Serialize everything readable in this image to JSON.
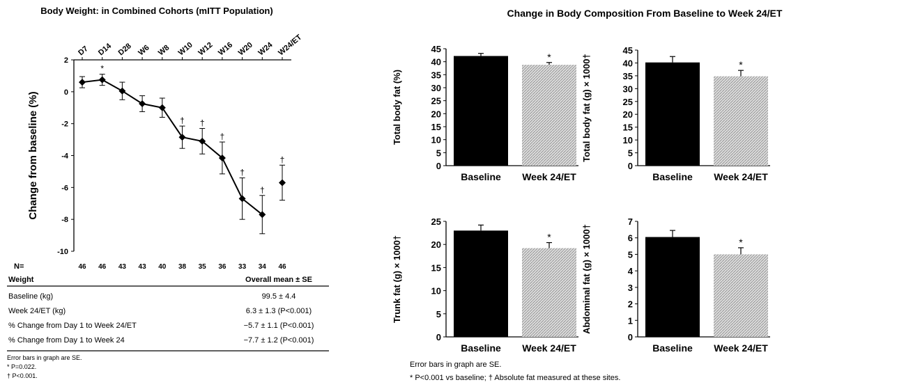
{
  "chart_data": [
    {
      "type": "line",
      "title": "Body Weight: in Combined Cohorts (mITT Population)",
      "ylabel": "Change from baseline (%)",
      "ylim": [
        -10,
        2
      ],
      "yticks": [
        2,
        0,
        -2,
        -4,
        -6,
        -8,
        -10
      ],
      "categories": [
        "D7",
        "D14",
        "D28",
        "W6",
        "W8",
        "W10",
        "W12",
        "W16",
        "W20",
        "W24",
        "W24/ET"
      ],
      "values": [
        0.6,
        0.75,
        0.05,
        -0.75,
        -1.0,
        -2.85,
        -3.1,
        -4.15,
        -6.7,
        -7.7,
        -5.7
      ],
      "errors": [
        0.35,
        0.35,
        0.55,
        0.5,
        0.6,
        0.7,
        0.8,
        1.0,
        1.3,
        1.2,
        1.1
      ],
      "markers": [
        "",
        "*",
        "",
        "",
        "",
        "†",
        "†",
        "†",
        "†",
        "†",
        "†"
      ],
      "n_label": "N=",
      "n_values": [
        "46",
        "46",
        "43",
        "43",
        "40",
        "38",
        "35",
        "36",
        "33",
        "34",
        "46"
      ],
      "table": {
        "headers": [
          "Weight",
          "Overall mean ± SE"
        ],
        "rows": [
          [
            "Baseline (kg)",
            "99.5 ± 4.4"
          ],
          [
            "Week 24/ET (kg)",
            "6.3 ± 1.3 (P<0.001)"
          ],
          [
            "% Change from Day 1 to Week 24/ET",
            "−5.7 ± 1.1 (P<0.001)"
          ],
          [
            "% Change from Day 1 to Week 24",
            "−7.7 ± 1.2 (P<0.001)"
          ]
        ]
      },
      "footnotes": [
        "Error bars in graph are SE.",
        "* P=0.022.",
        "† P<0.001."
      ]
    },
    {
      "type": "bar",
      "ylabel": "Total body fat (%)",
      "categories": [
        "Baseline",
        "Week 24/ET"
      ],
      "values": [
        42.2,
        38.8
      ],
      "errors": [
        1.0,
        0.9
      ],
      "ylim": [
        0,
        45
      ],
      "ystep": 5,
      "markers": [
        "",
        "*"
      ]
    },
    {
      "type": "bar",
      "ylabel": "Total body fat (g) × 1000†",
      "categories": [
        "Baseline",
        "Week 24/ET"
      ],
      "values": [
        40.2,
        34.8
      ],
      "errors": [
        2.3,
        2.3
      ],
      "ylim": [
        0,
        45
      ],
      "ystep": 5,
      "markers": [
        "",
        "*"
      ]
    },
    {
      "type": "bar",
      "ylabel": "Trunk fat (g) × 1000†",
      "categories": [
        "Baseline",
        "Week 24/ET"
      ],
      "values": [
        23.0,
        19.2
      ],
      "errors": [
        1.2,
        1.2
      ],
      "ylim": [
        0,
        25
      ],
      "ystep": 5,
      "markers": [
        "",
        "*"
      ]
    },
    {
      "type": "bar",
      "ylabel": "Abdominal fat (g) × 1000†",
      "categories": [
        "Baseline",
        "Week 24/ET"
      ],
      "values": [
        6.05,
        5.0
      ],
      "errors": [
        0.4,
        0.4
      ],
      "ylim": [
        0,
        7
      ],
      "ystep": 1,
      "markers": [
        "",
        "*"
      ]
    }
  ],
  "right_title": "Change in Body Composition From Baseline to Week 24/ET",
  "right_footnotes": [
    "Error bars in graph are SE.",
    "* P<0.001 vs baseline; † Absolute fat measured at these sites."
  ],
  "colors": {
    "baseline": "#000000",
    "week24": "#c8c8c8"
  }
}
